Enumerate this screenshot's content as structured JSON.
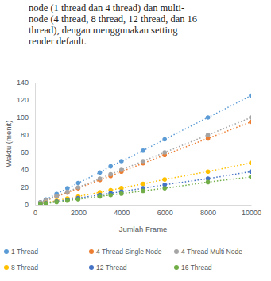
{
  "paragraph": [
    "node (1 thread dan 4 thread) dan multi-",
    "node (4 thread, 8 thread, 12 thread, dan 16",
    "thread), dengan menggunakan  setting",
    "render default."
  ],
  "chart_data": {
    "type": "scatter",
    "x_label": "Jumlah Frame",
    "y_label": "Waktu (menit)",
    "x": [
      250,
      500,
      1000,
      1500,
      2000,
      3000,
      3500,
      4000,
      5000,
      6000,
      8000,
      10000
    ],
    "series": [
      {
        "name": "1 Thread",
        "color": "#5b9bd5",
        "values": [
          3,
          6,
          12.5,
          19,
          25,
          37,
          44,
          50,
          62,
          75,
          100,
          125
        ]
      },
      {
        "name": "4 Thread Single Node",
        "color": "#ed7d31",
        "values": [
          2.4,
          4.8,
          9.5,
          14,
          19,
          28.5,
          33,
          38,
          47.5,
          57,
          76,
          95
        ]
      },
      {
        "name": "4 Thread Multi Node",
        "color": "#a5a5a5",
        "values": [
          2.5,
          5,
          10,
          15,
          20,
          30,
          35,
          40,
          50,
          60,
          80,
          100
        ]
      },
      {
        "name": "8 Thread",
        "color": "#ffc000",
        "values": [
          1.2,
          2.4,
          4.8,
          7.2,
          9.6,
          14.4,
          16.8,
          19.2,
          24,
          29,
          38,
          48
        ]
      },
      {
        "name": "12 Thread",
        "color": "#4472c4",
        "values": [
          1,
          1.9,
          3.8,
          5.7,
          7.6,
          11.4,
          13.3,
          15.2,
          19,
          23,
          30,
          38
        ]
      },
      {
        "name": "16 Thread",
        "color": "#70ad47",
        "values": [
          0.8,
          1.6,
          3.2,
          4.8,
          6.4,
          9.6,
          11.2,
          12.8,
          16,
          19,
          26,
          32
        ]
      }
    ],
    "xlim": [
      0,
      10000
    ],
    "xticks": [
      0,
      2000,
      4000,
      6000,
      8000,
      10000
    ],
    "ylim": [
      0,
      140
    ],
    "yticks": [
      0,
      20,
      40,
      60,
      80,
      100,
      120,
      140
    ],
    "grid": false,
    "legend": "bottom",
    "marker": "circle",
    "line_style": "dotted"
  }
}
